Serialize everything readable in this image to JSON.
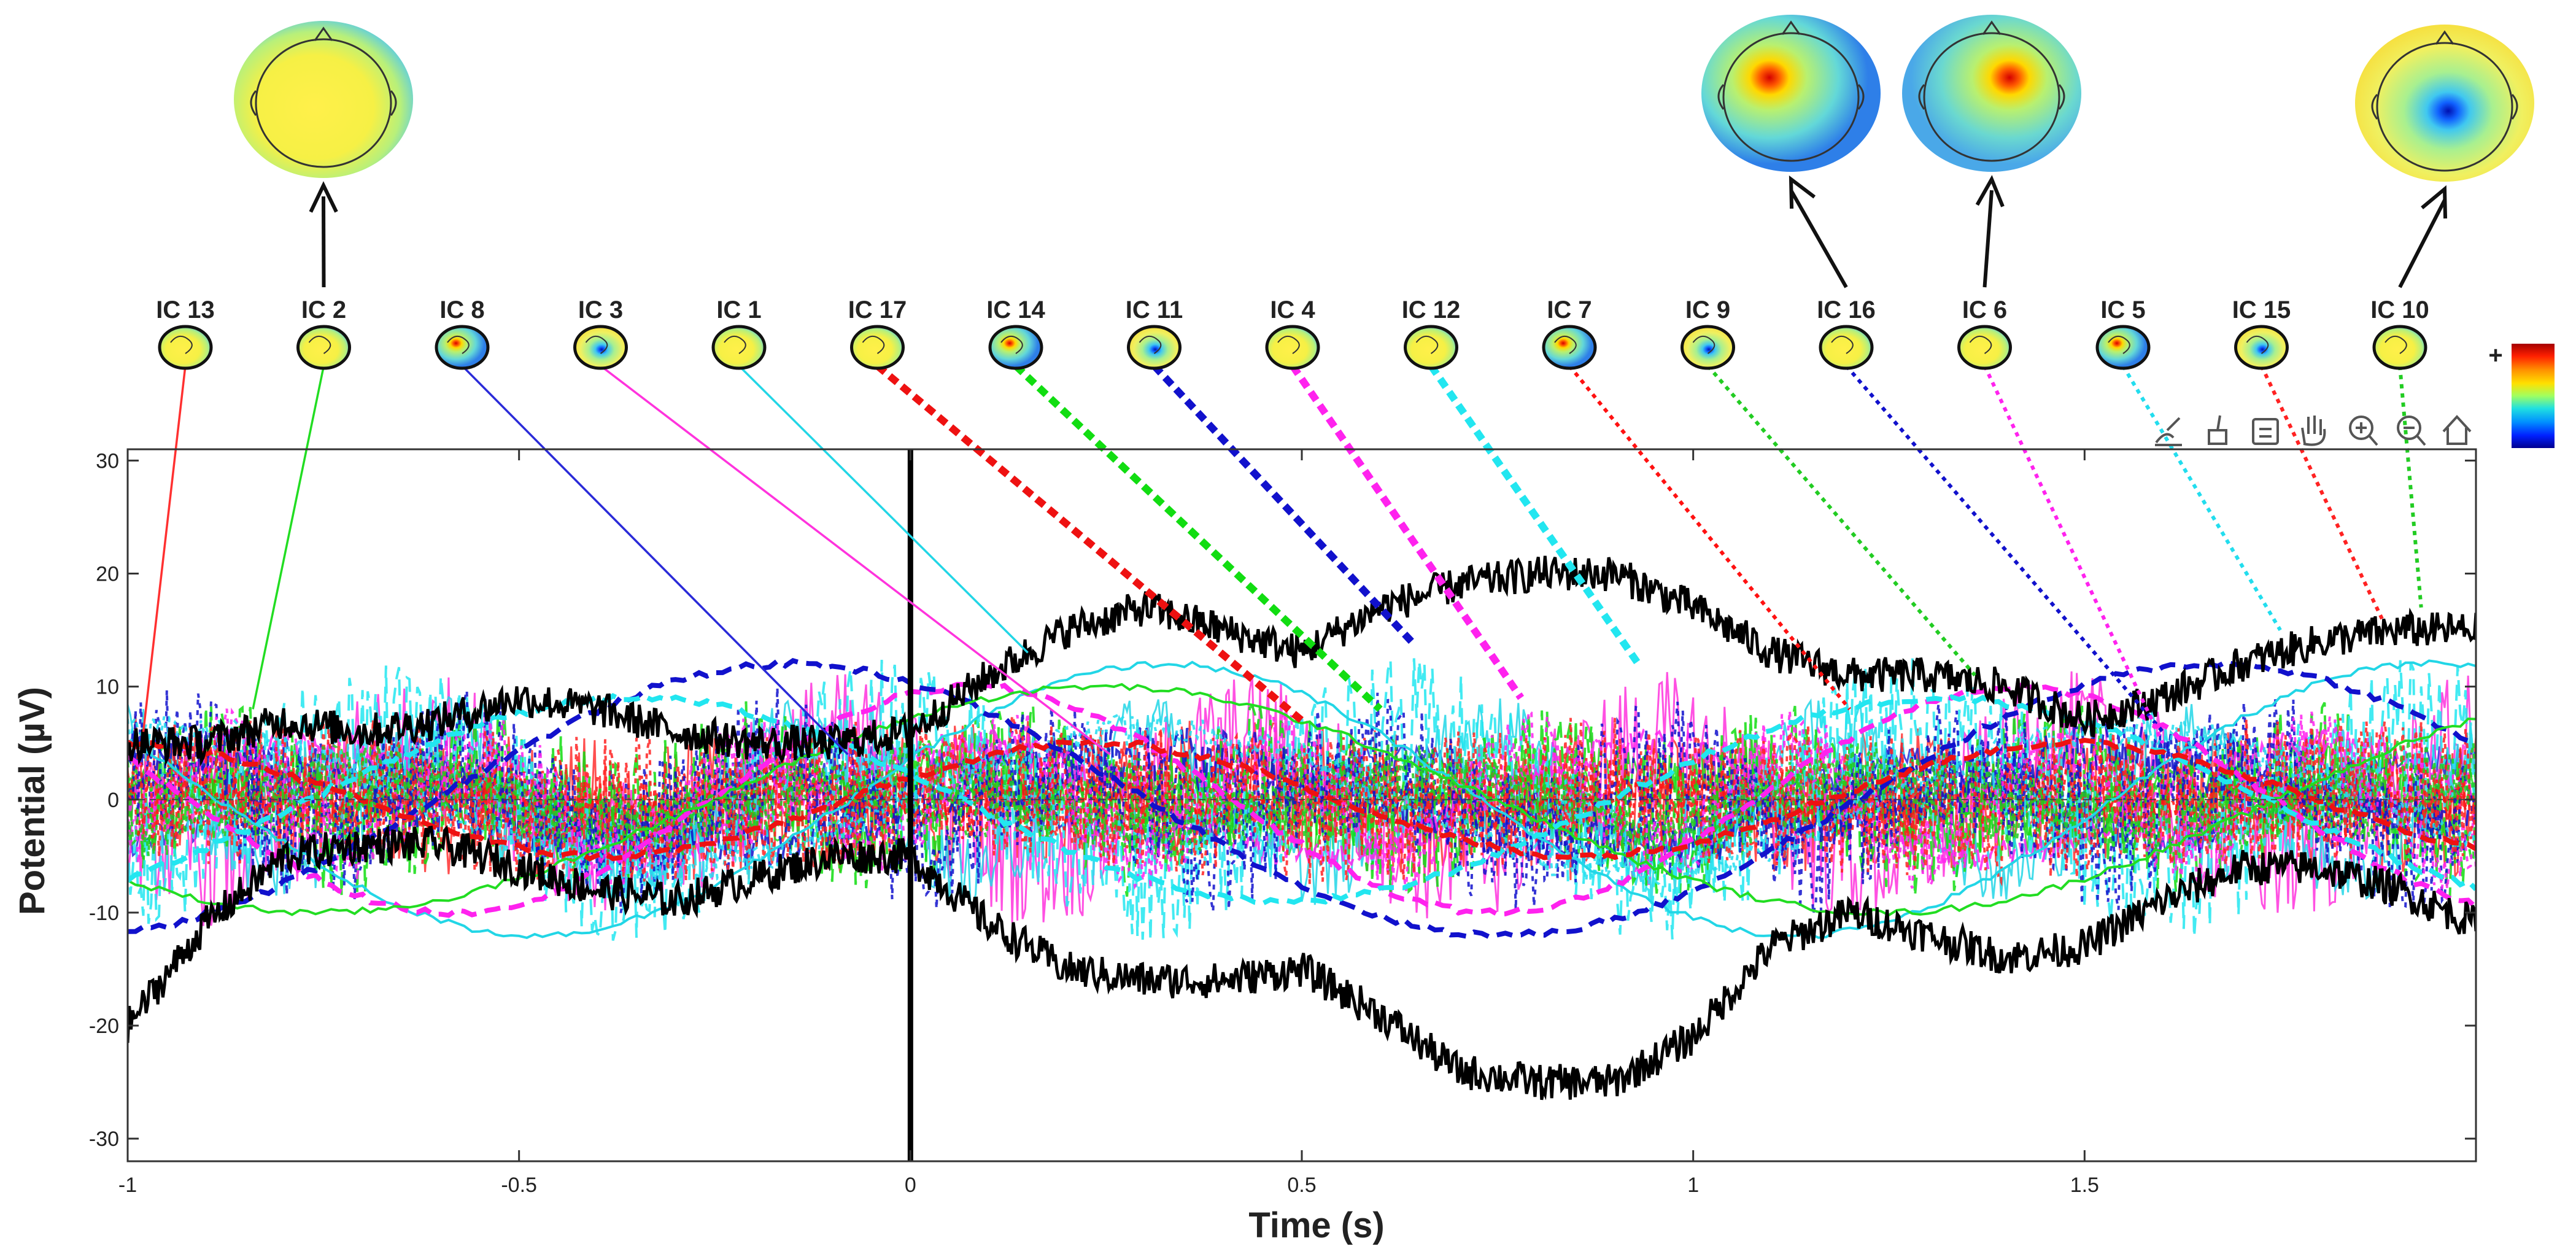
{
  "chart_data": {
    "type": "line",
    "title": "",
    "xlabel": "Time (s)",
    "ylabel": "Potential (µV)",
    "xlim": [
      -1,
      2
    ],
    "ylim": [
      -32,
      31
    ],
    "x_ticks": [
      -1,
      -0.5,
      0,
      0.5,
      1,
      1.5
    ],
    "x_tick_labels": [
      "-1",
      "-0.5",
      "0",
      "0.5",
      "1",
      "1.5"
    ],
    "y_ticks": [
      -30,
      -20,
      -10,
      0,
      10,
      20,
      30
    ],
    "y_tick_labels": [
      "-30",
      "-20",
      "-10",
      "0",
      "10",
      "20",
      "30"
    ],
    "grid": false,
    "stimulus_onset_x": 0,
    "component_labels": [
      "IC 13",
      "IC 2",
      "IC 8",
      "IC 3",
      "IC 1",
      "IC 17",
      "IC 14",
      "IC 11",
      "IC 4",
      "IC 12",
      "IC 7",
      "IC 9",
      "IC 16",
      "IC 6",
      "IC 5",
      "IC 15",
      "IC 10"
    ],
    "component_colors": [
      "#ff3030",
      "#22dd22",
      "#2a2ad8",
      "#ff33dd",
      "#22d6e6",
      "#ee1111",
      "#11dd11",
      "#1111cc",
      "#ff22ee",
      "#22e6f0",
      "#ff1111",
      "#22cc22",
      "#1111cc",
      "#ff22ee",
      "#22ddee",
      "#ff2222",
      "#22cc22"
    ],
    "component_line_style": [
      "solid",
      "solid",
      "solid",
      "solid",
      "solid",
      "dashed",
      "dashed",
      "dashed",
      "dashed",
      "dashed",
      "dotted",
      "dotted",
      "dotted",
      "dotted",
      "dotted",
      "dotted",
      "dotted"
    ],
    "component_peak_times": [
      -0.98,
      -0.84,
      -0.08,
      0.255,
      0.15,
      0.5,
      0.6,
      0.64,
      0.78,
      0.93,
      1.2,
      1.36,
      1.6,
      1.6,
      1.75,
      1.88,
      1.93
    ],
    "component_peak_values": [
      6,
      8,
      4,
      4,
      13,
      7,
      8,
      14,
      9,
      12,
      8,
      11,
      6,
      5,
      15,
      16,
      17
    ],
    "envelope": {
      "name": "",
      "color": "#000000",
      "x": [
        -1,
        -0.9,
        -0.8,
        -0.7,
        -0.6,
        -0.5,
        -0.4,
        -0.3,
        -0.2,
        -0.1,
        0,
        0.1,
        0.2,
        0.3,
        0.4,
        0.5,
        0.6,
        0.7,
        0.8,
        0.9,
        1.0,
        1.1,
        1.2,
        1.3,
        1.4,
        1.5,
        1.6,
        1.7,
        1.8,
        1.9,
        2.0
      ],
      "upper": [
        5,
        5,
        7,
        6,
        7,
        9,
        8,
        6,
        5,
        5,
        6,
        11,
        15,
        17,
        15,
        13,
        17,
        19,
        20,
        20,
        17,
        13,
        11,
        11,
        10,
        7,
        9,
        12,
        14,
        15,
        15
      ],
      "lower": [
        -20,
        -11,
        -5,
        -4,
        -4,
        -6,
        -8,
        -9,
        -7,
        -5,
        -5,
        -11,
        -15,
        -16,
        -16,
        -15,
        -19,
        -24,
        -25,
        -25,
        -21,
        -13,
        -10,
        -12,
        -14,
        -13,
        -9,
        -6,
        -6,
        -8,
        -11
      ]
    },
    "colorbar": {
      "max_label": "+",
      "colors": [
        "#a50000",
        "#ff2000",
        "#ff9000",
        "#ffe000",
        "#a0ff60",
        "#20e0e0",
        "#0090ff",
        "#0020ff",
        "#000090"
      ]
    },
    "expanded_topomaps": [
      {
        "label": "IC 2",
        "pattern": "broad-positive"
      },
      {
        "label": "IC 16",
        "pattern": "left-focal-positive"
      },
      {
        "label": "IC 6",
        "pattern": "right-focal-positive"
      },
      {
        "label": "IC 10",
        "pattern": "central-negative"
      }
    ]
  },
  "toolbar": {
    "icons": [
      "brush-icon",
      "paint-icon",
      "data-cursor-icon",
      "pan-hand-icon",
      "zoom-in-icon",
      "zoom-out-icon",
      "home-icon"
    ]
  }
}
